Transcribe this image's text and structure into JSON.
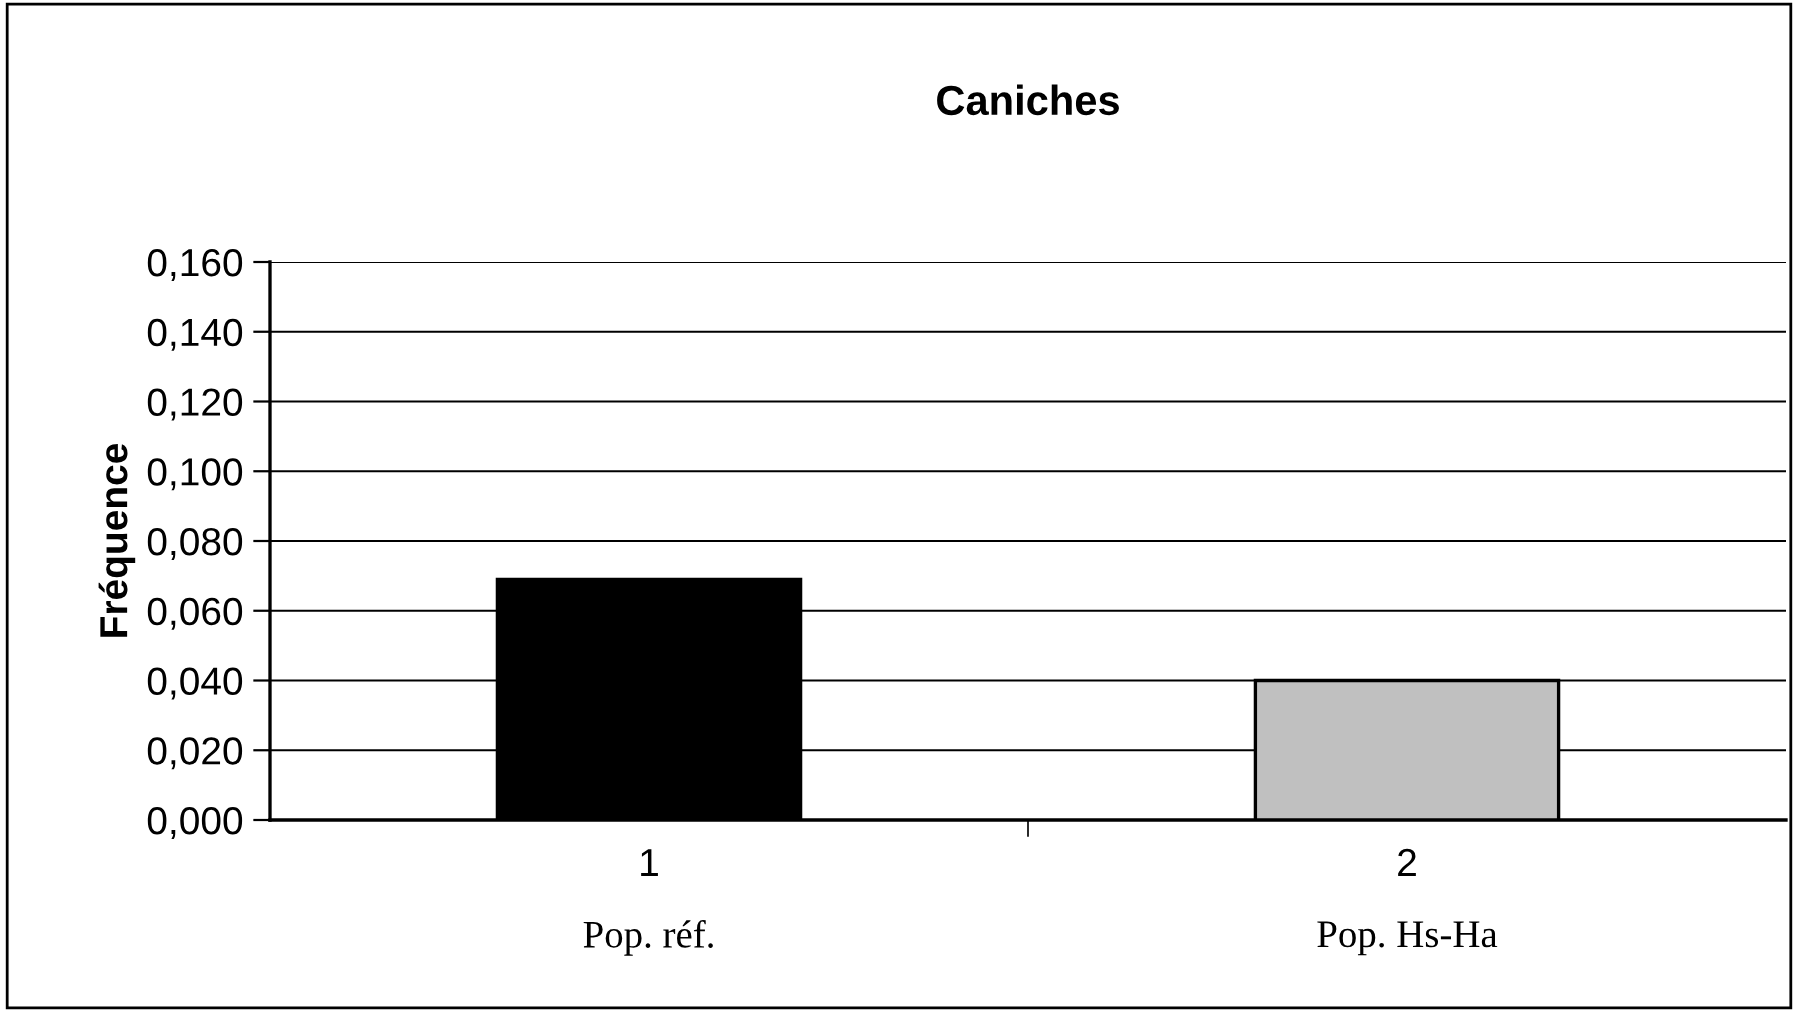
{
  "chart_data": {
    "type": "bar",
    "title": "Caniches",
    "ylabel": "Fréquence",
    "categories": [
      "1",
      "2"
    ],
    "values": [
      0.069,
      0.04
    ],
    "colors": [
      "#000000",
      "#c0c0c0"
    ],
    "ylim": [
      0,
      0.16
    ],
    "yticks": [
      {
        "value": 0,
        "label": "0,000"
      },
      {
        "value": 0.02,
        "label": "0,020"
      },
      {
        "value": 0.04,
        "label": "0,040"
      },
      {
        "value": 0.06,
        "label": "0,060"
      },
      {
        "value": 0.08,
        "label": "0,080"
      },
      {
        "value": 0.1,
        "label": "0,100"
      },
      {
        "value": 0.12,
        "label": "0,120"
      },
      {
        "value": 0.14,
        "label": "0,140"
      },
      {
        "value": 0.16,
        "label": "0,160"
      }
    ],
    "grid": "y",
    "legend": false,
    "annotations": [
      "Pop. réf.",
      "Pop. Hs-Ha"
    ]
  }
}
